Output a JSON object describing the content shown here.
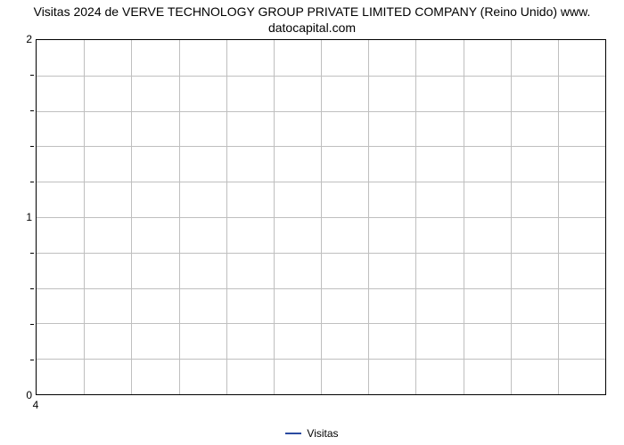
{
  "chart": {
    "type": "line",
    "title_line1": "Visitas 2024 de VERVE TECHNOLOGY GROUP PRIVATE LIMITED COMPANY (Reino Unido) www.",
    "title_line2": "datocapital.com",
    "title_fontsize": 14,
    "title_color": "#000000",
    "background_color": "#ffffff",
    "border_color": "#000000",
    "grid_color": "#bfbfbf",
    "yaxis": {
      "min": 0,
      "max": 2,
      "major_ticks": [
        0,
        1,
        2
      ],
      "minor_step": 0.2,
      "tick_fontsize": 12,
      "grid_step_fraction": 0.1
    },
    "xaxis": {
      "ticks": [
        "4"
      ],
      "tick_fontsize": 12,
      "n_columns": 12
    },
    "series": [
      {
        "label": "Visitas",
        "color": "#2b4ba1",
        "values": []
      }
    ],
    "legend": {
      "position": "bottom-center",
      "fontsize": 12,
      "swatch_width": 18
    }
  }
}
